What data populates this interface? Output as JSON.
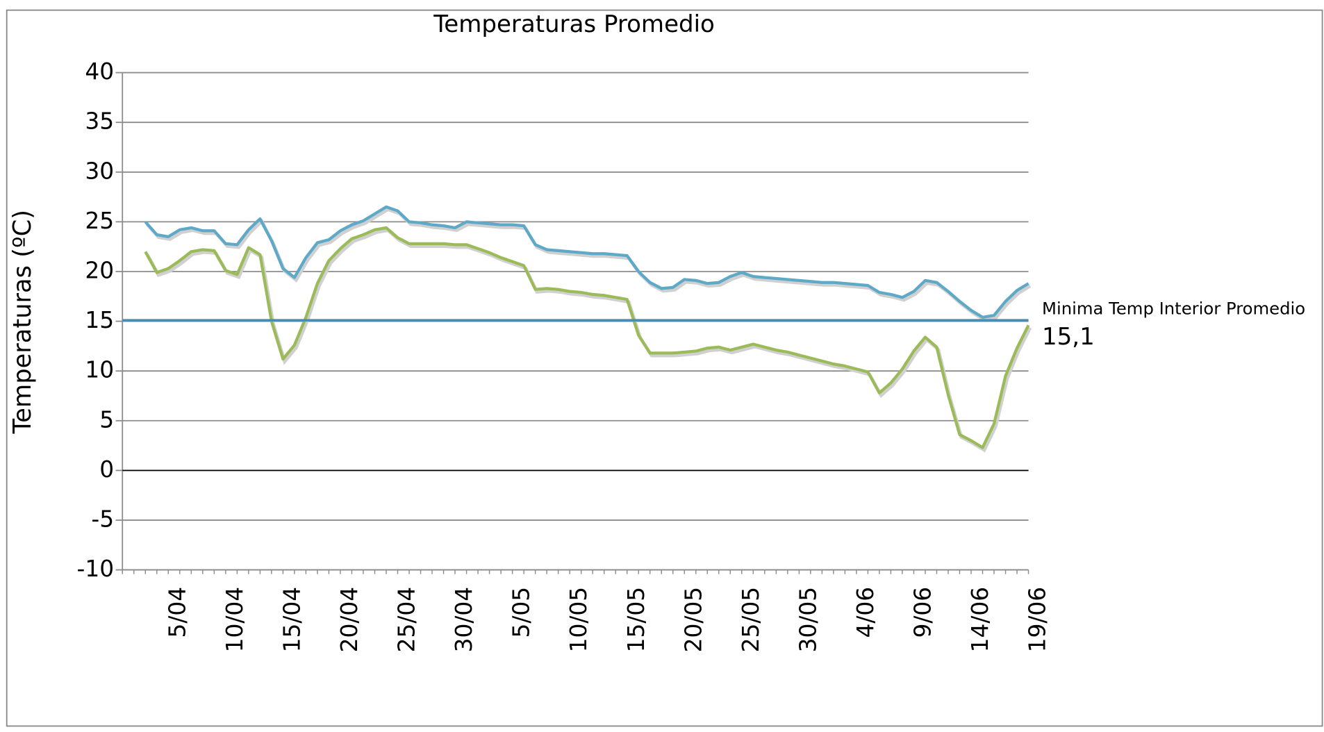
{
  "chart_data": {
    "type": "line",
    "title": "Temperaturas Promedio",
    "y_label": "Temperaturas (ºC)",
    "categories": [
      null,
      null,
      null,
      null,
      "5/04",
      null,
      null,
      null,
      null,
      "10/04",
      null,
      null,
      null,
      null,
      "15/04",
      null,
      null,
      null,
      null,
      "20/04",
      null,
      null,
      null,
      null,
      "25/04",
      null,
      null,
      null,
      null,
      "30/04",
      null,
      null,
      null,
      null,
      "5/05",
      null,
      null,
      null,
      null,
      "10/05",
      null,
      null,
      null,
      null,
      "15/05",
      null,
      null,
      null,
      null,
      "20/05",
      null,
      null,
      null,
      null,
      "25/05",
      null,
      null,
      null,
      null,
      "30/05",
      null,
      null,
      null,
      null,
      "4/06",
      null,
      null,
      null,
      null,
      "9/06",
      null,
      null,
      null,
      null,
      "14/06",
      null,
      null,
      null,
      null,
      "19/06"
    ],
    "series": [
      {
        "color": "#5ea8c8",
        "values": [
          null,
          null,
          25.0,
          23.7,
          23.5,
          24.2,
          24.4,
          24.1,
          24.1,
          22.8,
          22.7,
          24.2,
          25.3,
          23.1,
          20.3,
          19.4,
          21.4,
          22.9,
          23.2,
          24.1,
          24.7,
          25.1,
          25.8,
          26.5,
          26.1,
          25.0,
          24.9,
          24.7,
          24.6,
          24.4,
          25.0,
          24.9,
          24.8,
          24.7,
          24.7,
          24.6,
          22.7,
          22.2,
          22.1,
          22.0,
          21.9,
          21.8,
          21.8,
          21.7,
          21.6,
          20.0,
          18.9,
          18.3,
          18.4,
          19.2,
          19.1,
          18.8,
          18.9,
          19.5,
          19.9,
          19.5,
          19.4,
          19.3,
          19.2,
          19.1,
          19.0,
          18.9,
          18.9,
          18.8,
          18.7,
          18.6,
          17.9,
          17.7,
          17.4,
          18.0,
          19.1,
          18.9,
          18.0,
          17.0,
          16.1,
          15.4,
          15.6,
          17.0,
          18.1,
          18.8
        ]
      },
      {
        "color": "#9bbb59",
        "values": [
          null,
          null,
          22.0,
          19.9,
          20.3,
          21.1,
          22.0,
          22.2,
          22.1,
          20.1,
          19.7,
          22.4,
          21.7,
          15.0,
          11.2,
          12.6,
          15.4,
          18.8,
          21.1,
          22.3,
          23.3,
          23.7,
          24.2,
          24.4,
          23.4,
          22.8,
          22.8,
          22.8,
          22.8,
          22.7,
          22.7,
          22.3,
          21.9,
          21.4,
          21.0,
          20.6,
          18.2,
          18.3,
          18.2,
          18.0,
          17.9,
          17.7,
          17.6,
          17.4,
          17.2,
          13.6,
          11.8,
          11.8,
          11.8,
          11.9,
          12.0,
          12.3,
          12.4,
          12.1,
          12.4,
          12.7,
          12.4,
          12.1,
          11.9,
          11.6,
          11.3,
          11.0,
          10.7,
          10.5,
          10.2,
          9.9,
          7.8,
          8.8,
          10.2,
          12.0,
          13.4,
          12.4,
          7.6,
          3.6,
          3.0,
          2.3,
          4.7,
          9.5,
          12.3,
          14.6
        ]
      }
    ],
    "reference_line": {
      "name": "Minima Temp Interior Promedio",
      "value": 15.1,
      "value_label": "15,1",
      "color": "#4a8db3"
    },
    "ylim": [
      -10,
      40
    ],
    "yticks": [
      -10,
      -5,
      0,
      5,
      10,
      15,
      20,
      25,
      30,
      35,
      40
    ],
    "grid": true
  }
}
